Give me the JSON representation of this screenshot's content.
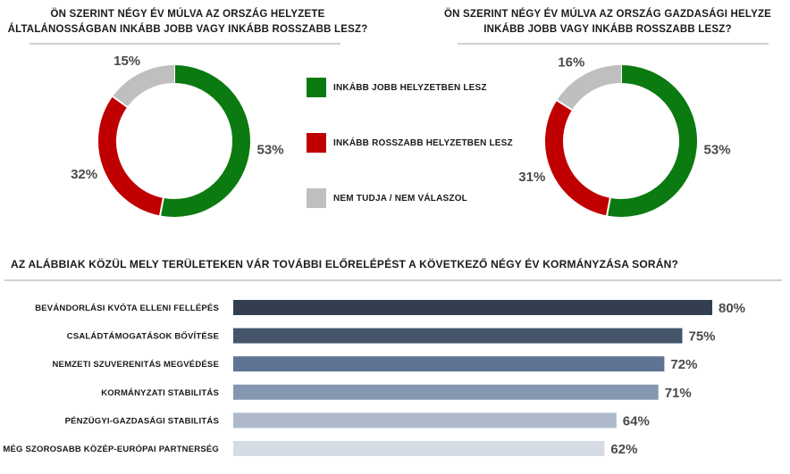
{
  "chart_data": [
    {
      "type": "pie",
      "title": "ÖN SZERINT NÉGY ÉV MÚLVA AZ ORSZÁG HELYZETE ÁLTALÁNOSSÁGBAN INKÁBB JOBB VAGY INKÁBB ROSSZABB LESZ?",
      "title_lines": [
        "ÖN SZERINT NÉGY ÉV MÚLVA AZ ORSZÁG HELYZETE",
        "ÁLTALÁNOSSÁGBAN INKÁBB JOBB VAGY INKÁBB ROSSZABB LESZ?"
      ],
      "categories": [
        "INKÁBB JOBB HELYZETBEN LESZ",
        "INKÁBB ROSSZABB HELYZETBEN LESZ",
        "NEM TUDJA / NEM VÁLASZOL"
      ],
      "values": [
        53,
        32,
        15
      ],
      "value_labels": [
        "53%",
        "32%",
        "15%"
      ],
      "colors": [
        "#0b7a10",
        "#c00000",
        "#bfbfbf"
      ]
    },
    {
      "type": "pie",
      "title": "ÖN SZERINT NÉGY ÉV MÚLVA AZ ORSZÁG GAZDASÁGI HELYZE INKÁBB JOBB VAGY INKÁBB ROSSZABB LESZ?",
      "title_lines": [
        "ÖN SZERINT NÉGY ÉV MÚLVA AZ ORSZÁG GAZDASÁGI HELYZE",
        "INKÁBB JOBB VAGY INKÁBB ROSSZABB LESZ?"
      ],
      "categories": [
        "INKÁBB JOBB HELYZETBEN LESZ",
        "INKÁBB ROSSZABB HELYZETBEN LESZ",
        "NEM TUDJA / NEM VÁLASZOL"
      ],
      "values": [
        53,
        31,
        16
      ],
      "value_labels": [
        "53%",
        "31%",
        "16%"
      ],
      "colors": [
        "#0b7a10",
        "#c00000",
        "#bfbfbf"
      ]
    },
    {
      "type": "bar",
      "orientation": "horizontal",
      "title": "AZ ALÁBBIAK KÖZÜL MELY TERÜLETEKEN VÁR TOVÁBBI ELŐRELÉPÉST A KÖVETKEZŐ NÉGY ÉV KORMÁNYZÁSA SORÁN?",
      "categories": [
        "BEVÁNDORLÁSI KVÓTA ELLENI FELLÉPÉS",
        "CSALÁDTÁMOGATÁSOK BŐVÍTÉSE",
        "NEMZETI SZUVERENITÁS MEGVÉDÉSE",
        "KORMÁNYZATI STABILITÁS",
        "PÉNZÜGYI-GAZDASÁGI STABILITÁS",
        "MÉG SZOROSABB KÖZÉP-EURÓPAI PARTNERSÉG"
      ],
      "values": [
        80,
        75,
        72,
        71,
        64,
        62
      ],
      "value_labels": [
        "80%",
        "75%",
        "72%",
        "71%",
        "64%",
        "62%"
      ],
      "colors": [
        "#333f50",
        "#44546a",
        "#5f7393",
        "#8497b0",
        "#adb9ca",
        "#d6dce5"
      ],
      "xlim": [
        0,
        100
      ]
    }
  ],
  "legend": [
    {
      "label": "INKÁBB JOBB HELYZETBEN LESZ",
      "color": "#0b7a10"
    },
    {
      "label": "INKÁBB ROSSZABB HELYZETBEN LESZ",
      "color": "#c00000"
    },
    {
      "label": "NEM TUDJA / NEM VÁLASZOL",
      "color": "#bfbfbf"
    }
  ]
}
